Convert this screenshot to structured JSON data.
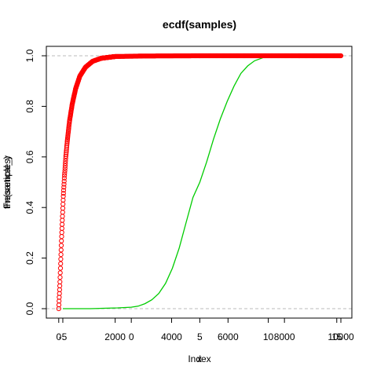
{
  "title": "ecdf(samples)",
  "chart_data": {
    "type": "scatter",
    "title": "ecdf(samples)",
    "xlabels": [
      "Index",
      "x"
    ],
    "ylabels": [
      "theoretical_y",
      "Fn(samples)"
    ],
    "axes": {
      "bottom_a": {
        "range": [
          -50,
          10000
        ],
        "ticks": [
          0,
          2000,
          4000,
          6000,
          8000,
          10000
        ]
      },
      "bottom_b": {
        "range": [
          -5.4,
          15.3
        ],
        "ticks": [
          -5,
          0,
          5,
          10,
          15
        ]
      },
      "left": {
        "range": [
          0,
          1
        ],
        "ticks": [
          0.0,
          0.2,
          0.4,
          0.6,
          0.8,
          1.0
        ],
        "tick_labels": [
          "0.0",
          "0.2",
          "0.4",
          "0.6",
          "0.8",
          "1.0"
        ]
      }
    },
    "reference_lines": [
      0,
      1
    ],
    "series": [
      {
        "color": "#ff0000",
        "marker": "open-circle",
        "axis": "bottom_a",
        "description_points": [
          [
            0,
            0.0
          ],
          [
            20,
            0.05
          ],
          [
            40,
            0.1
          ],
          [
            60,
            0.16
          ],
          [
            80,
            0.22
          ],
          [
            100,
            0.28
          ],
          [
            130,
            0.36
          ],
          [
            160,
            0.44
          ],
          [
            200,
            0.52
          ],
          [
            250,
            0.6
          ],
          [
            300,
            0.66
          ],
          [
            380,
            0.74
          ],
          [
            480,
            0.81
          ],
          [
            600,
            0.87
          ],
          [
            750,
            0.92
          ],
          [
            950,
            0.955
          ],
          [
            1200,
            0.978
          ],
          [
            1500,
            0.99
          ],
          [
            2000,
            0.997
          ],
          [
            3000,
            0.999
          ],
          [
            5000,
            1.0
          ],
          [
            7500,
            1.0
          ],
          [
            10000,
            1.0
          ]
        ]
      },
      {
        "color": "#00cc00",
        "marker": "line",
        "axis": "bottom_b",
        "points": [
          [
            -5,
            0.0
          ],
          [
            -3,
            0.0
          ],
          [
            -1,
            0.003
          ],
          [
            0,
            0.006
          ],
          [
            0.5,
            0.01
          ],
          [
            1,
            0.02
          ],
          [
            1.5,
            0.035
          ],
          [
            2,
            0.06
          ],
          [
            2.5,
            0.1
          ],
          [
            3,
            0.16
          ],
          [
            3.5,
            0.24
          ],
          [
            4,
            0.34
          ],
          [
            4.5,
            0.44
          ],
          [
            5,
            0.5
          ],
          [
            5.5,
            0.58
          ],
          [
            6,
            0.67
          ],
          [
            6.5,
            0.75
          ],
          [
            7,
            0.82
          ],
          [
            7.5,
            0.88
          ],
          [
            8,
            0.93
          ],
          [
            8.5,
            0.96
          ],
          [
            9,
            0.98
          ],
          [
            9.5,
            0.99
          ],
          [
            10,
            1.0
          ],
          [
            12,
            1.0
          ],
          [
            15,
            1.0
          ]
        ]
      }
    ]
  }
}
